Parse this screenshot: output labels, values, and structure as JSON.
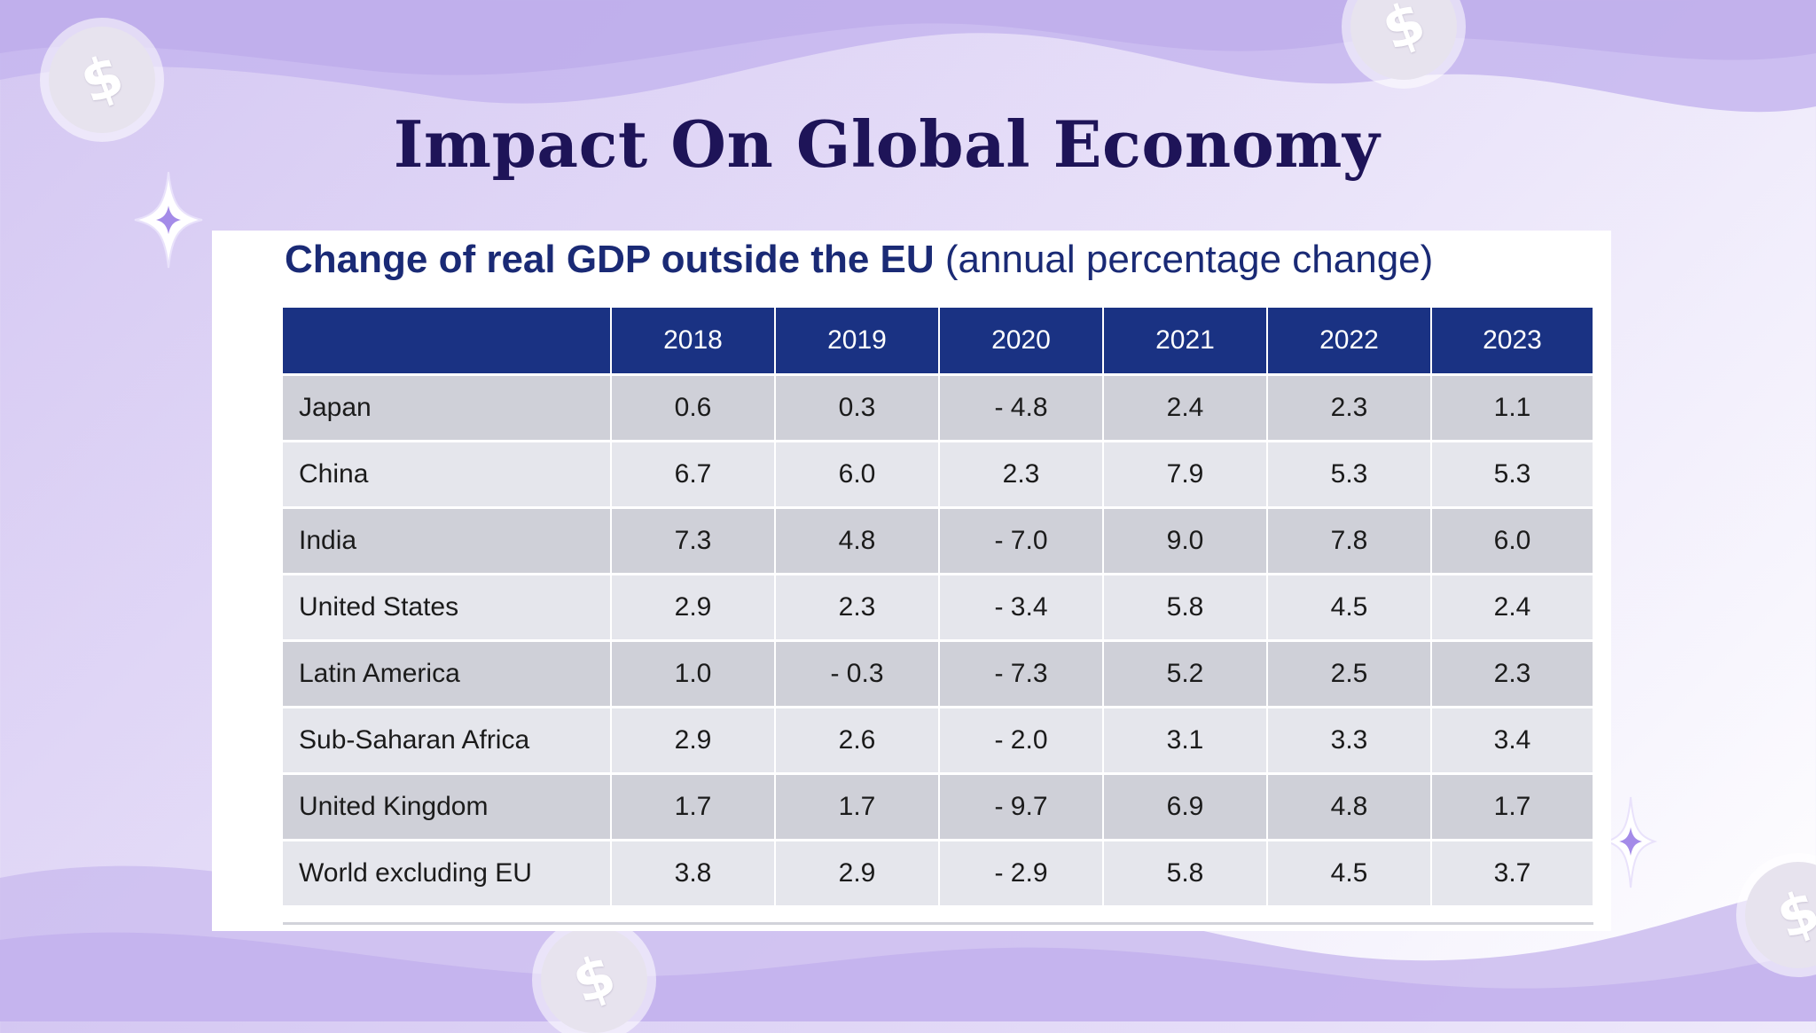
{
  "slide": {
    "title": "Impact On Global Economy"
  },
  "decor": {
    "coin_symbol": "$",
    "icons": [
      "dollar-coin-icon",
      "sparkle-icon"
    ],
    "colors": {
      "title": "#1e1458",
      "table_title": "#1a2a75",
      "header_bg": "#1a3283",
      "row_dark": "#cfd0d8",
      "row_light": "#e5e6ec",
      "sparkle": "#a48be8"
    }
  },
  "table": {
    "title_bold": "Change of real GDP outside the EU",
    "title_rest": "(annual percentage change)",
    "columns": [
      "",
      "2018",
      "2019",
      "2020",
      "2021",
      "2022",
      "2023"
    ],
    "rows": [
      [
        "Japan",
        "0.6",
        "0.3",
        "- 4.8",
        "2.4",
        "2.3",
        "1.1"
      ],
      [
        "China",
        "6.7",
        "6.0",
        "2.3",
        "7.9",
        "5.3",
        "5.3"
      ],
      [
        "India",
        "7.3",
        "4.8",
        "- 7.0",
        "9.0",
        "7.8",
        "6.0"
      ],
      [
        "United States",
        "2.9",
        "2.3",
        "- 3.4",
        "5.8",
        "4.5",
        "2.4"
      ],
      [
        "Latin America",
        "1.0",
        "- 0.3",
        "- 7.3",
        "5.2",
        "2.5",
        "2.3"
      ],
      [
        "Sub-Saharan Africa",
        "2.9",
        "2.6",
        "- 2.0",
        "3.1",
        "3.3",
        "3.4"
      ],
      [
        "United Kingdom",
        "1.7",
        "1.7",
        "- 9.7",
        "6.9",
        "4.8",
        "1.7"
      ],
      [
        "World excluding EU",
        "3.8",
        "2.9",
        "- 2.9",
        "5.8",
        "4.5",
        "3.7"
      ]
    ]
  }
}
